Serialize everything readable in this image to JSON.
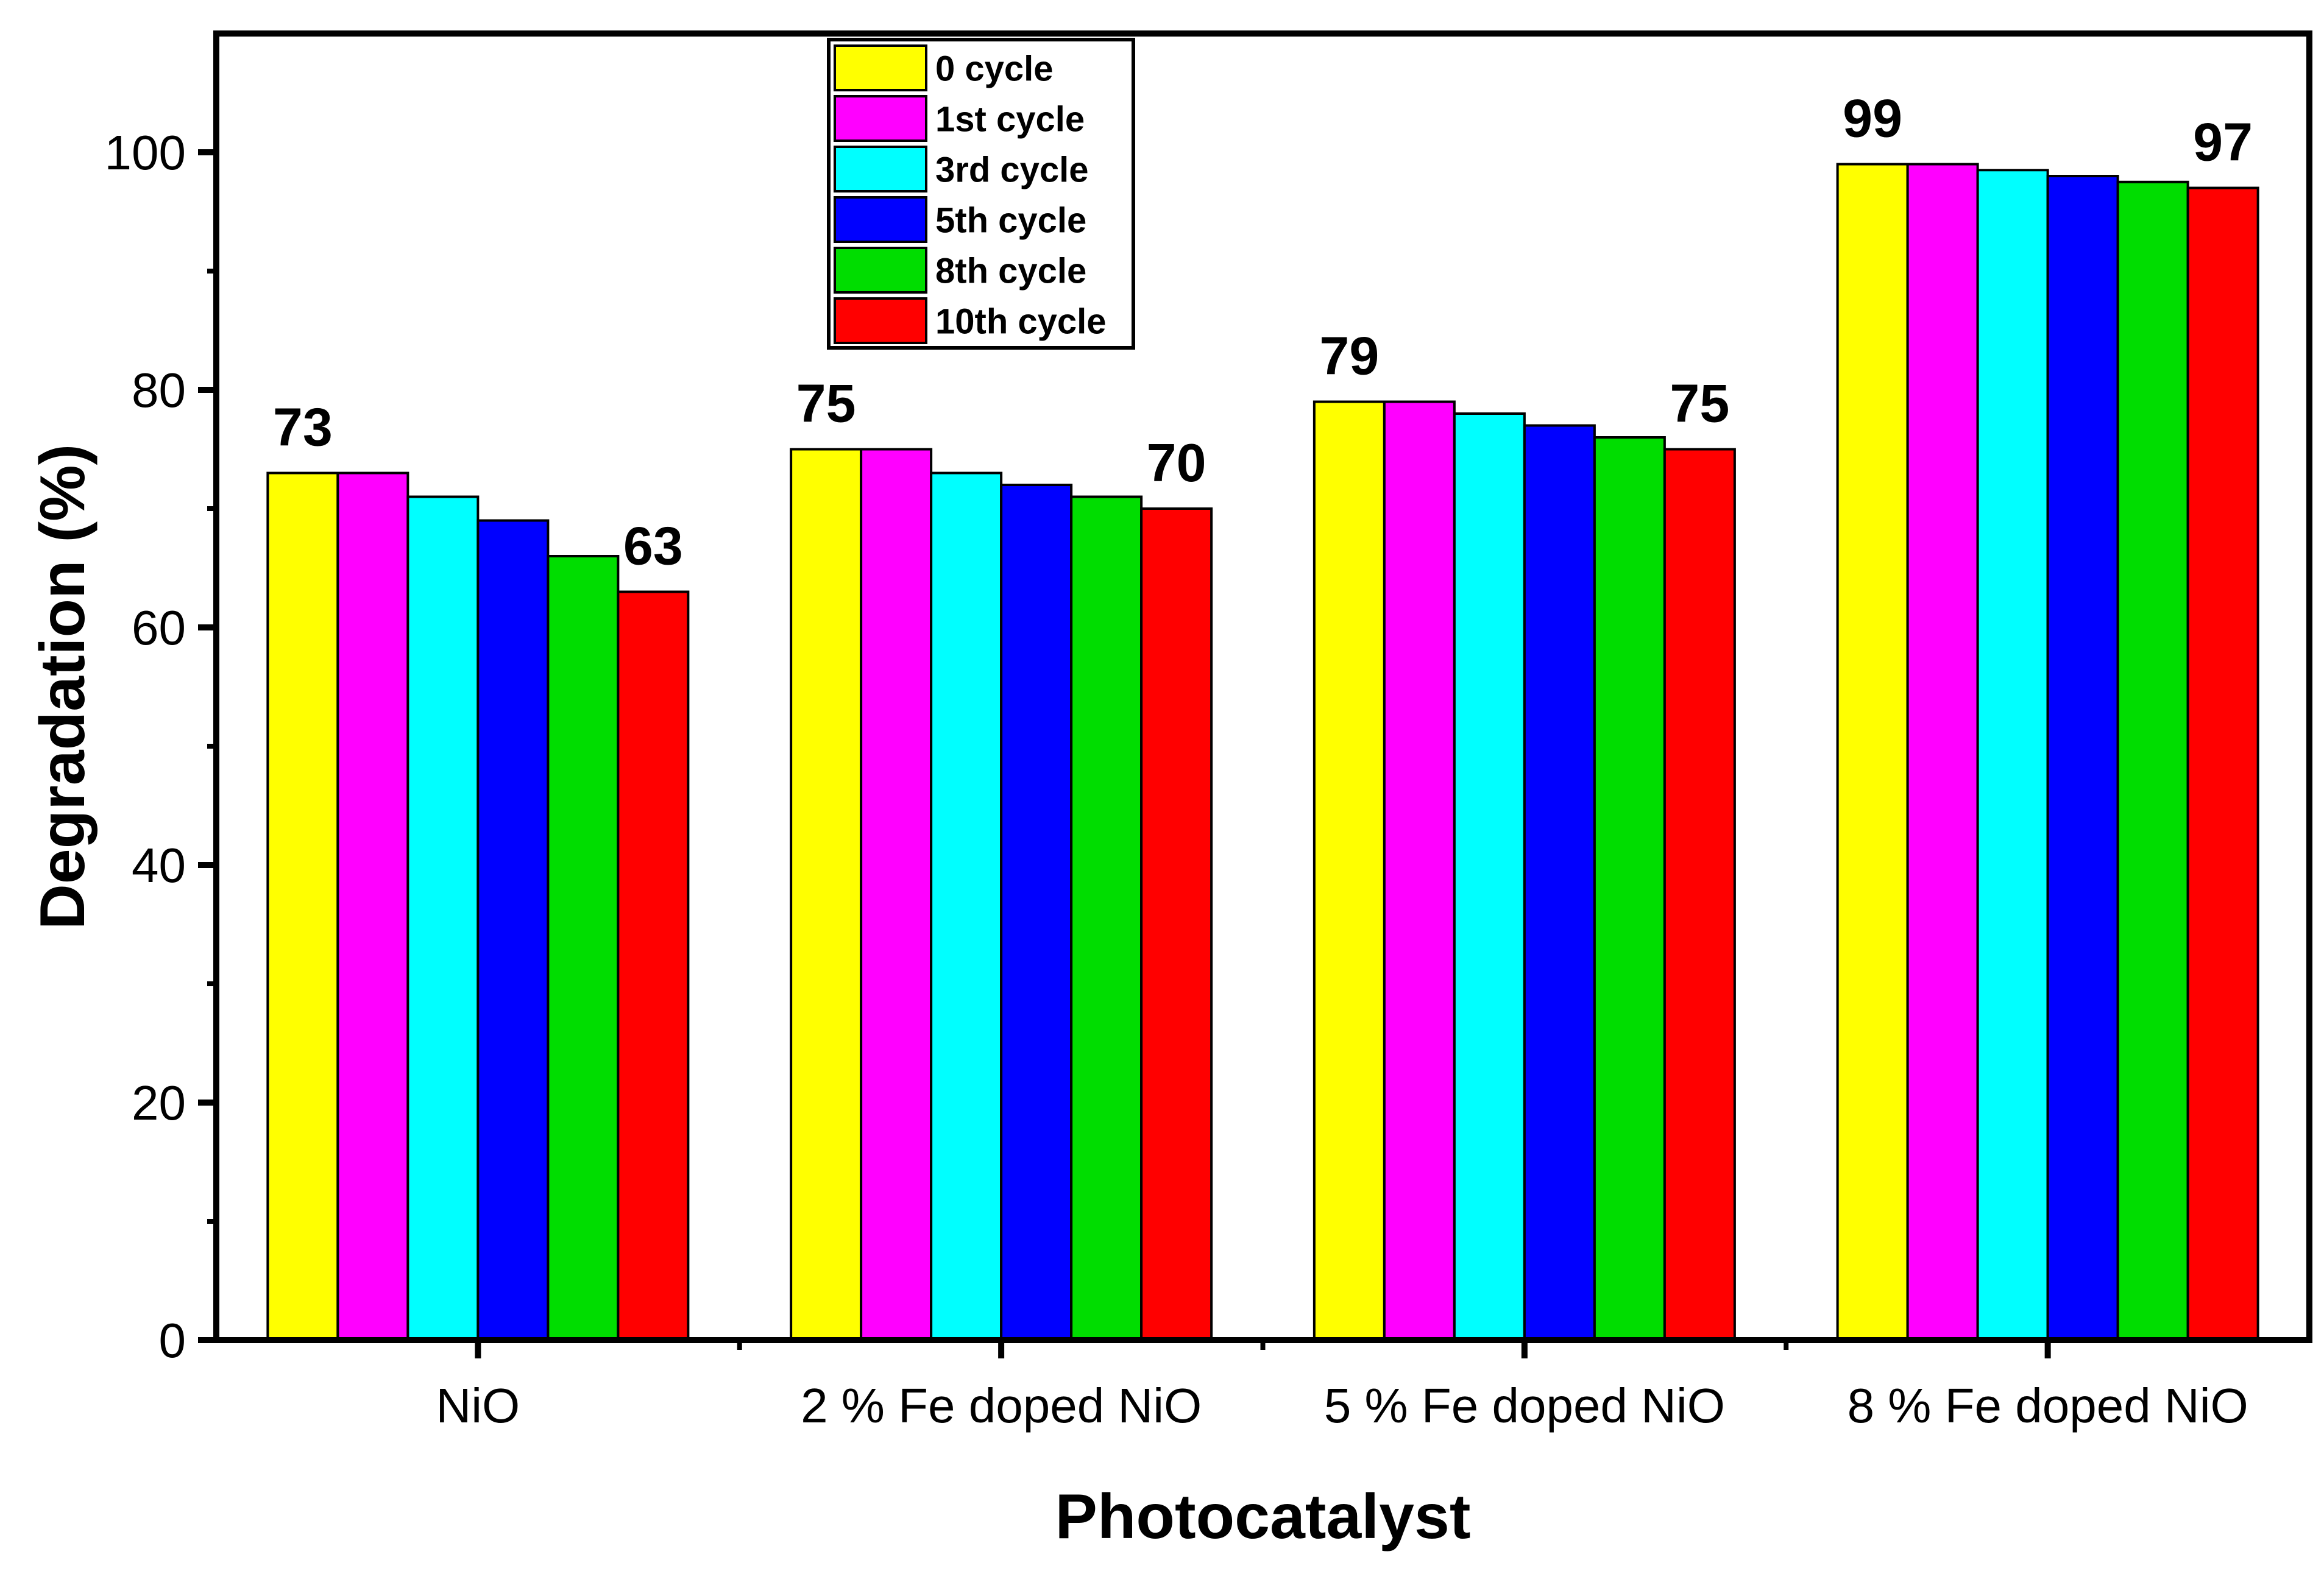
{
  "chart_data": {
    "type": "bar",
    "title": "",
    "xlabel": "Photocatalyst",
    "ylabel": "Degradation (%)",
    "ylim": [
      0,
      110
    ],
    "yticks": [
      0,
      20,
      40,
      60,
      80,
      100
    ],
    "categories": [
      "NiO",
      "2 % Fe doped NiO",
      "5 % Fe doped NiO",
      "8 % Fe doped NiO"
    ],
    "series": [
      {
        "name": "0 cycle",
        "color": "#ffff00",
        "values": [
          73,
          75,
          79,
          99
        ]
      },
      {
        "name": "1st cycle",
        "color": "#ff00ff",
        "values": [
          73,
          75,
          79,
          99
        ]
      },
      {
        "name": "3rd cycle",
        "color": "#00ffff",
        "values": [
          71,
          73,
          78,
          98.5
        ]
      },
      {
        "name": "5th cycle",
        "color": "#0000ff",
        "values": [
          69,
          72,
          77,
          98
        ]
      },
      {
        "name": "8th cycle",
        "color": "#00dd00",
        "values": [
          66,
          71,
          76,
          97.5
        ]
      },
      {
        "name": "10th cycle",
        "color": "#ff0000",
        "values": [
          63,
          70,
          75,
          97
        ]
      }
    ],
    "annotations": [
      {
        "text": "73",
        "category": 0,
        "series": 0
      },
      {
        "text": "63",
        "category": 0,
        "series": 5
      },
      {
        "text": "75",
        "category": 1,
        "series": 0
      },
      {
        "text": "70",
        "category": 1,
        "series": 5
      },
      {
        "text": "79",
        "category": 2,
        "series": 0
      },
      {
        "text": "75",
        "category": 2,
        "series": 5
      },
      {
        "text": "99",
        "category": 3,
        "series": 0
      },
      {
        "text": "97",
        "category": 3,
        "series": 5
      }
    ],
    "legend_position": "top-center",
    "grid": false
  }
}
